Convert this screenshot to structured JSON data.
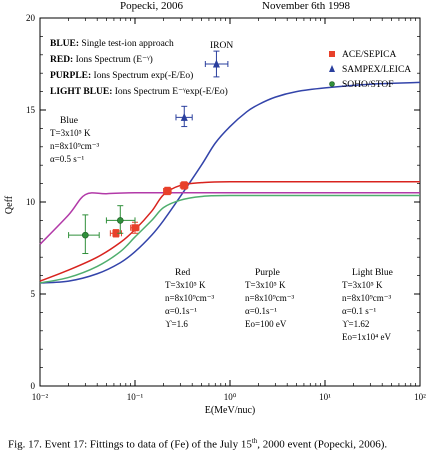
{
  "header": {
    "left": "Popecki, 2006",
    "right": "November 6th 1998"
  },
  "caption": {
    "before": "Fig. 17. Event 17: Fittings to data of (Fe) of the July 15",
    "sup": "th",
    "after": ", 2000 event (Popecki, 2006)."
  },
  "chart_data": {
    "type": "line",
    "title": "",
    "xlabel": "E(MeV/nuc)",
    "ylabel": "Qeff",
    "xscale": "log",
    "xlim": [
      0.01,
      100
    ],
    "ylim": [
      0,
      20
    ],
    "xticks": [
      0.01,
      0.1,
      1,
      10,
      100
    ],
    "xtick_labels": [
      "10⁻²",
      "10⁻¹",
      "10⁰",
      "10¹",
      "10²"
    ],
    "yticks": [
      0,
      5,
      10,
      15,
      20
    ],
    "ytick_labels": [
      "0",
      "5",
      "10",
      "15",
      "20"
    ],
    "grid": false,
    "element_label": "IRON",
    "method_lines": [
      {
        "color": "BLUE",
        "text": "Single test-ion approach"
      },
      {
        "color": "RED",
        "text": "Ions Spectrum (E⁻ᵞ)"
      },
      {
        "color": "PURPLE",
        "text": "Ions Spectrum  exp(-E/Eo)"
      },
      {
        "color": "LIGHT BLUE",
        "text": "Ions Spectrum E⁻ᵞexp(-E/Eo)"
      }
    ],
    "parameter_blocks": [
      {
        "title": "Blue",
        "lines": [
          "T=3x10⁵ K",
          "n=8x10⁹cm⁻³",
          "α=0.5 s⁻¹"
        ]
      },
      {
        "title": "Red",
        "lines": [
          "T=3x10⁵ K",
          "n=8x10⁹cm⁻³",
          "α=0.1s⁻¹",
          "ϒ=1.6"
        ]
      },
      {
        "title": "Purple",
        "lines": [
          "T=3x10⁵ K",
          "n=8x10⁹cm⁻³",
          "α=0.1s⁻¹",
          "Eo=100 eV"
        ]
      },
      {
        "title": "Light Blue",
        "lines": [
          "T=3x10⁵ K",
          "n=8x10⁹cm⁻³",
          "α=0.1 s⁻¹",
          "ϒ=1.62",
          "Eo=1x10⁴ eV"
        ]
      }
    ],
    "legend": {
      "position": "top-right",
      "entries": [
        {
          "name": "ACE/SEPICA",
          "marker": "square",
          "color": "#e8402a"
        },
        {
          "name": "SAMPEX/LEICA",
          "marker": "triangle",
          "color": "#2a3f9e"
        },
        {
          "name": "SOHO/STOF",
          "marker": "circle",
          "color": "#2f8f3a"
        }
      ]
    },
    "series": [
      {
        "name": "Blue",
        "color": "#3344aa",
        "points": [
          [
            0.01,
            5.6
          ],
          [
            0.02,
            5.7
          ],
          [
            0.04,
            6.1
          ],
          [
            0.07,
            6.7
          ],
          [
            0.1,
            7.3
          ],
          [
            0.15,
            8.2
          ],
          [
            0.2,
            9.0
          ],
          [
            0.3,
            10.3
          ],
          [
            0.5,
            12.0
          ],
          [
            0.7,
            13.2
          ],
          [
            1,
            14.1
          ],
          [
            1.5,
            14.9
          ],
          [
            2,
            15.3
          ],
          [
            3,
            15.7
          ],
          [
            5,
            16.0
          ],
          [
            10,
            16.2
          ],
          [
            30,
            16.4
          ],
          [
            100,
            16.5
          ]
        ]
      },
      {
        "name": "Red",
        "color": "#d8231e",
        "points": [
          [
            0.01,
            5.7
          ],
          [
            0.02,
            6.3
          ],
          [
            0.04,
            7.0
          ],
          [
            0.07,
            7.8
          ],
          [
            0.1,
            8.5
          ],
          [
            0.15,
            9.5
          ],
          [
            0.2,
            10.4
          ],
          [
            0.3,
            10.9
          ],
          [
            0.5,
            11.05
          ],
          [
            1,
            11.1
          ],
          [
            10,
            11.1
          ],
          [
            100,
            11.1
          ]
        ]
      },
      {
        "name": "Purple",
        "color": "#b23aa8",
        "points": [
          [
            0.01,
            7.7
          ],
          [
            0.02,
            9.3
          ],
          [
            0.03,
            10.4
          ],
          [
            0.05,
            10.45
          ],
          [
            0.1,
            10.5
          ],
          [
            1,
            10.5
          ],
          [
            10,
            10.5
          ],
          [
            100,
            10.5
          ]
        ]
      },
      {
        "name": "Light Blue",
        "color": "#4fae6e",
        "points": [
          [
            0.01,
            5.6
          ],
          [
            0.02,
            5.9
          ],
          [
            0.04,
            6.5
          ],
          [
            0.07,
            7.3
          ],
          [
            0.1,
            8.1
          ],
          [
            0.15,
            9.0
          ],
          [
            0.2,
            9.7
          ],
          [
            0.3,
            10.1
          ],
          [
            0.5,
            10.3
          ],
          [
            1,
            10.35
          ],
          [
            10,
            10.35
          ],
          [
            100,
            10.35
          ]
        ]
      }
    ],
    "data_points": [
      {
        "dataset": "ACE/SEPICA",
        "x": 0.063,
        "y": 8.3,
        "xerr": [
          0.055,
          0.072
        ],
        "yerr": [
          8.1,
          8.5
        ]
      },
      {
        "dataset": "ACE/SEPICA",
        "x": 0.1,
        "y": 8.6,
        "xerr": [
          0.09,
          0.11
        ],
        "yerr": [
          8.3,
          8.9
        ]
      },
      {
        "dataset": "ACE/SEPICA",
        "x": 0.22,
        "y": 10.6,
        "xerr": [
          0.2,
          0.24
        ],
        "yerr": [
          10.4,
          10.8
        ]
      },
      {
        "dataset": "ACE/SEPICA",
        "x": 0.33,
        "y": 10.9,
        "xerr": [
          0.3,
          0.36
        ],
        "yerr": [
          10.7,
          11.1
        ]
      },
      {
        "dataset": "SAMPEX/LEICA",
        "x": 0.33,
        "y": 14.6,
        "xerr": [
          0.27,
          0.4
        ],
        "yerr": [
          14.1,
          15.2
        ]
      },
      {
        "dataset": "SAMPEX/LEICA",
        "x": 0.72,
        "y": 17.5,
        "xerr": [
          0.55,
          0.95
        ],
        "yerr": [
          16.8,
          18.2
        ]
      },
      {
        "dataset": "SOHO/STOF",
        "x": 0.03,
        "y": 8.2,
        "xerr": [
          0.02,
          0.042
        ],
        "yerr": [
          7.2,
          9.3
        ]
      },
      {
        "dataset": "SOHO/STOF",
        "x": 0.07,
        "y": 9.0,
        "xerr": [
          0.05,
          0.1
        ],
        "yerr": [
          8.3,
          9.8
        ]
      }
    ]
  }
}
